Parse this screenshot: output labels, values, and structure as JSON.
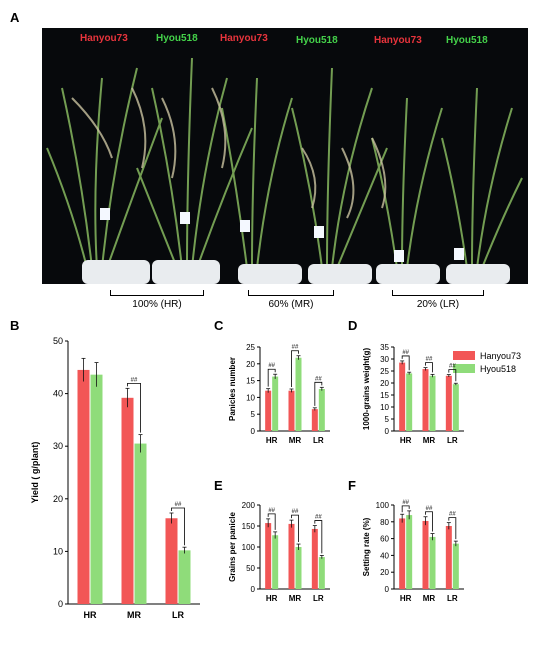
{
  "panel_letters": {
    "a": "A",
    "b": "B",
    "c": "C",
    "d": "D",
    "e": "E",
    "f": "F"
  },
  "colors": {
    "hanyou73": "#f25656",
    "hyou518": "#8fdc7a",
    "label_red": "#e8343c",
    "label_green": "#44d24a"
  },
  "photo": {
    "plant_labels": [
      "Hanyou73",
      "Hyou518",
      "Hanyou73",
      "Hyou518",
      "Hanyou73",
      "Hyou518"
    ],
    "treatments": [
      "100% (HR)",
      "60% (MR)",
      "20% (LR)"
    ]
  },
  "legend": [
    "Hanyou73",
    "Hyou518"
  ],
  "chart_data": [
    {
      "id": "B",
      "type": "bar",
      "categories": [
        "HR",
        "MR",
        "LR"
      ],
      "series": [
        {
          "name": "Hanyou73",
          "values": [
            44.5,
            39.2,
            16.3
          ],
          "errors": [
            2.2,
            1.8,
            1.0
          ]
        },
        {
          "name": "Hyou518",
          "values": [
            43.6,
            30.5,
            10.2
          ],
          "errors": [
            2.3,
            1.7,
            0.6
          ]
        }
      ],
      "ylabel": "Yield ( g/plant)",
      "ylim": [
        0,
        50
      ],
      "yticks": [
        0,
        10,
        20,
        30,
        40,
        50
      ],
      "annotations": [
        {
          "category": "MR",
          "text": "##"
        },
        {
          "category": "LR",
          "text": "##"
        }
      ]
    },
    {
      "id": "C",
      "type": "bar",
      "categories": [
        "HR",
        "MR",
        "LR"
      ],
      "series": [
        {
          "name": "Hanyou73",
          "values": [
            12,
            12,
            6.5
          ],
          "errors": [
            0.6,
            0.5,
            0.4
          ]
        },
        {
          "name": "Hyou518",
          "values": [
            16.2,
            21.8,
            12.5
          ],
          "errors": [
            0.7,
            0.6,
            0.5
          ]
        }
      ],
      "ylabel": "Panicles number",
      "ylim": [
        0,
        25
      ],
      "yticks": [
        0,
        5,
        10,
        15,
        20,
        25
      ],
      "annotations": [
        {
          "category": "HR",
          "text": "##"
        },
        {
          "category": "MR",
          "text": "##"
        },
        {
          "category": "LR",
          "text": "##"
        }
      ]
    },
    {
      "id": "D",
      "type": "bar",
      "categories": [
        "HR",
        "MR",
        "LR"
      ],
      "series": [
        {
          "name": "Hanyou73",
          "values": [
            28.5,
            25.8,
            23
          ],
          "errors": [
            0.7,
            0.6,
            0.5
          ]
        },
        {
          "name": "Hyou518",
          "values": [
            24,
            23,
            19.5
          ],
          "errors": [
            0.5,
            0.6,
            0.4
          ]
        }
      ],
      "ylabel": "1000-grains weight(g)",
      "ylim": [
        0,
        35
      ],
      "yticks": [
        0,
        5,
        10,
        15,
        20,
        25,
        30,
        35
      ],
      "annotations": [
        {
          "category": "HR",
          "text": "##"
        },
        {
          "category": "MR",
          "text": "##"
        },
        {
          "category": "LR",
          "text": "##"
        }
      ]
    },
    {
      "id": "E",
      "type": "bar",
      "categories": [
        "HR",
        "MR",
        "LR"
      ],
      "series": [
        {
          "name": "Hanyou73",
          "values": [
            157,
            155,
            143
          ],
          "errors": [
            10,
            9,
            8
          ]
        },
        {
          "name": "Hyou518",
          "values": [
            128,
            100,
            76
          ],
          "errors": [
            8,
            7,
            4
          ]
        }
      ],
      "ylabel": "Grains per panicle",
      "ylim": [
        0,
        200
      ],
      "yticks": [
        0,
        50,
        100,
        150,
        200
      ],
      "annotations": [
        {
          "category": "HR",
          "text": "##"
        },
        {
          "category": "MR",
          "text": "##"
        },
        {
          "category": "LR",
          "text": "##"
        }
      ]
    },
    {
      "id": "F",
      "type": "bar",
      "categories": [
        "HR",
        "MR",
        "LR"
      ],
      "series": [
        {
          "name": "Hanyou73",
          "values": [
            84,
            81,
            75
          ],
          "errors": [
            5,
            5,
            4
          ]
        },
        {
          "name": "Hyou518",
          "values": [
            88,
            62,
            54
          ],
          "errors": [
            5,
            4,
            3
          ]
        }
      ],
      "ylabel": "Setting rate (%)",
      "ylim": [
        0,
        100
      ],
      "yticks": [
        0,
        20,
        40,
        60,
        80,
        100
      ],
      "annotations": [
        {
          "category": "HR",
          "text": "##"
        },
        {
          "category": "MR",
          "text": "##"
        },
        {
          "category": "LR",
          "text": "##"
        }
      ]
    }
  ]
}
